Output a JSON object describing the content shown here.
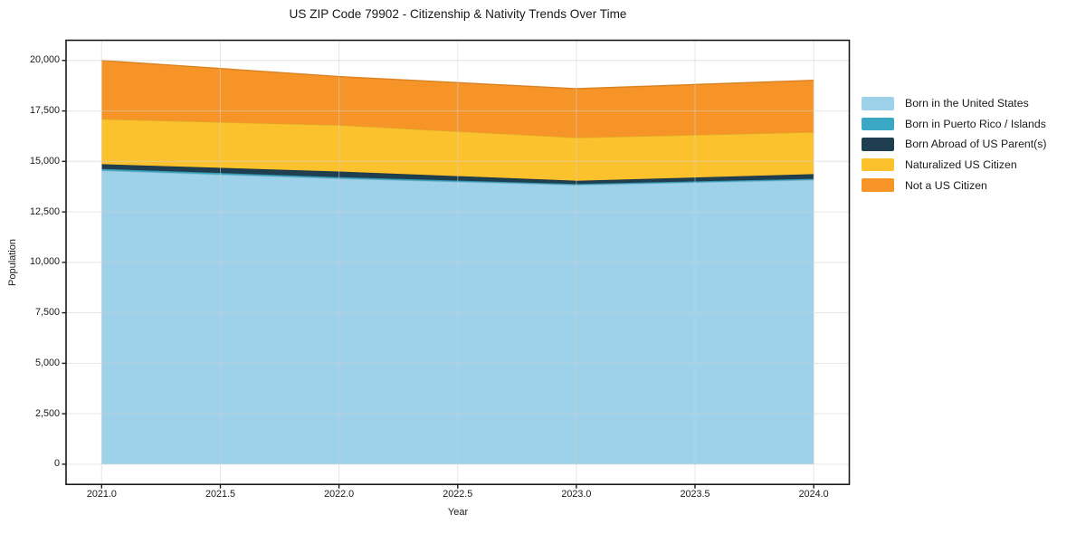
{
  "figure": {
    "title": "US ZIP Code 79902 - Citizenship & Nativity Trends Over Time",
    "background_color": "#ffffff",
    "frame_color": "#1a1a1a",
    "grid_color": "rgba(210,210,210,0.55)"
  },
  "chart_data": {
    "type": "area",
    "stacked": true,
    "title": "US ZIP Code 79902 - Citizenship & Nativity Trends Over Time",
    "xlabel": "Year",
    "ylabel": "Population",
    "grid": true,
    "legend_position": "right-outside",
    "x": [
      2021,
      2022,
      2023,
      2024
    ],
    "xlim": [
      2020.85,
      2024.15
    ],
    "ylim": [
      -1000,
      21000
    ],
    "series": [
      {
        "name": "Born in the United States",
        "color": "#9ed1ea",
        "values": [
          14550,
          14150,
          13830,
          14080
        ]
      },
      {
        "name": "Born in Puerto Rico / Islands",
        "color": "#3aa7c4",
        "values": [
          80,
          70,
          50,
          60
        ]
      },
      {
        "name": "Born Abroad of US Parent(s)",
        "color": "#1f3e4f",
        "values": [
          230,
          280,
          160,
          230
        ]
      },
      {
        "name": "Naturalized US Citizen",
        "color": "#fcc22d",
        "values": [
          2240,
          2300,
          2140,
          2080
        ]
      },
      {
        "name": "Not a US Citizen",
        "color": "#f79428",
        "values": [
          2900,
          2400,
          2420,
          2570
        ]
      }
    ],
    "stack_totals": [
      20000,
      19200,
      18600,
      19020
    ],
    "xticks": {
      "values": [
        2021.0,
        2021.5,
        2022.0,
        2022.5,
        2023.0,
        2023.5,
        2024.0
      ],
      "labels": [
        "2021.0",
        "2021.5",
        "2022.0",
        "2022.5",
        "2023.0",
        "2023.5",
        "2024.0"
      ]
    },
    "yticks": {
      "values": [
        0,
        2500,
        5000,
        7500,
        10000,
        12500,
        15000,
        17500,
        20000
      ],
      "labels": [
        "0",
        "2,500",
        "5,000",
        "7,500",
        "10,000",
        "12,500",
        "15,000",
        "17,500",
        "20,000"
      ]
    }
  }
}
